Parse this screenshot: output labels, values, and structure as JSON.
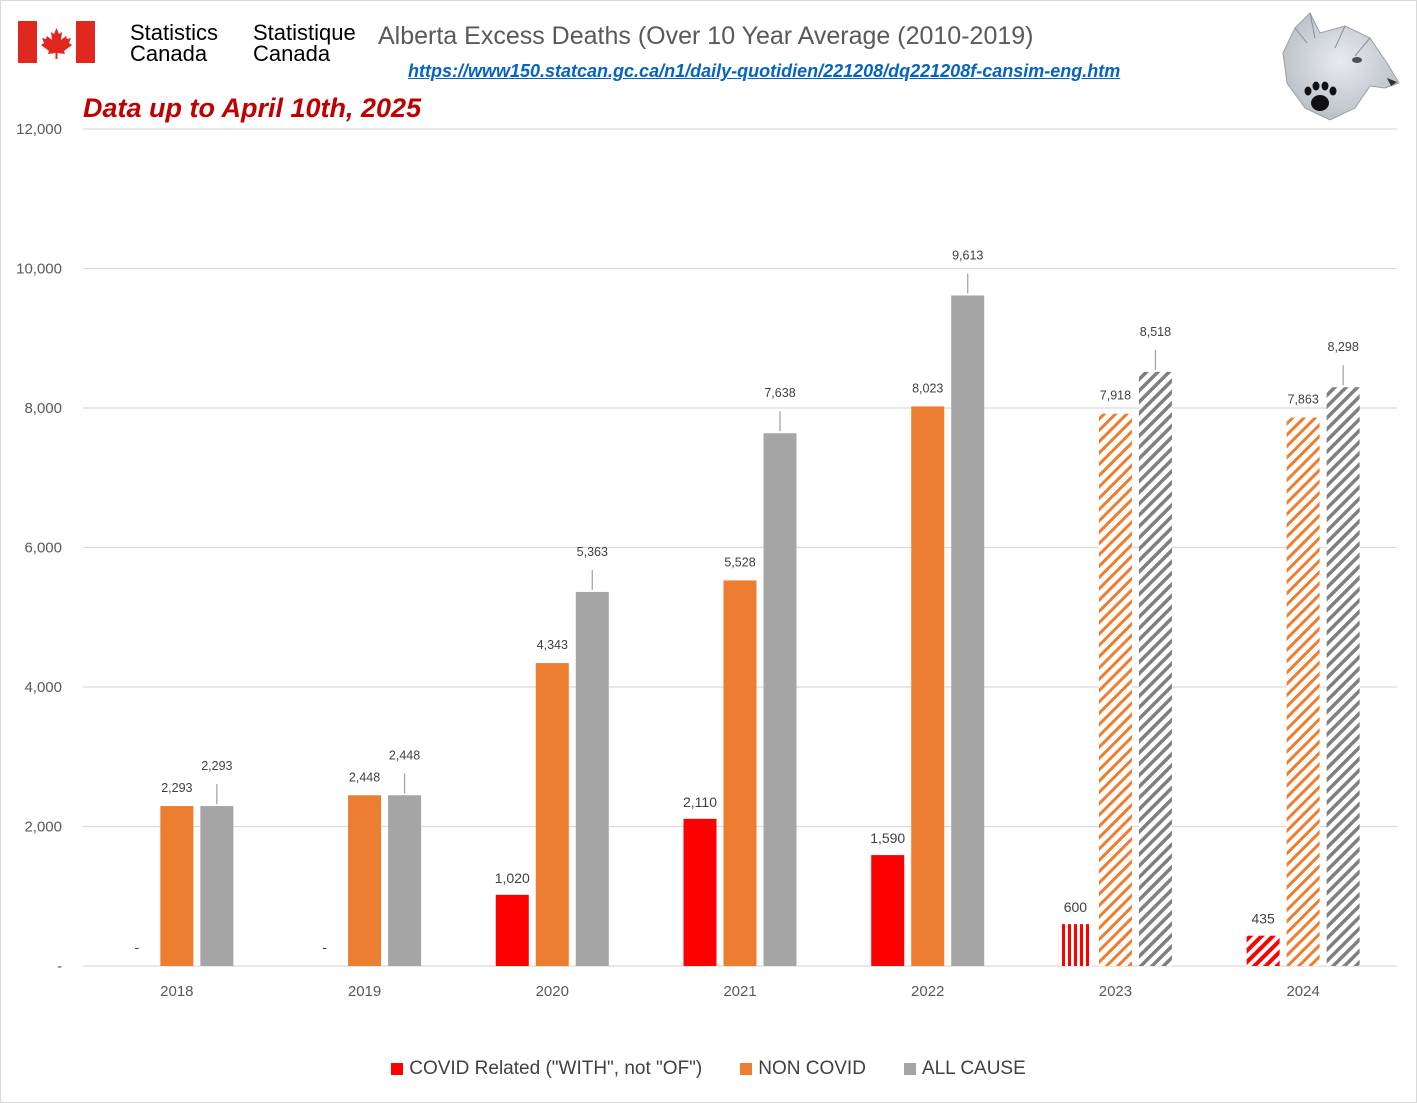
{
  "header": {
    "org_en_1": "Statistics",
    "org_en_2": "Canada",
    "org_fr_1": "Statistique",
    "org_fr_2": "Canada",
    "title": "Alberta Excess Deaths (Over 10 Year Average (2010-2019)",
    "url": "https://www150.statcan.gc.ca/n1/daily-quotidien/221208/dq221208f-cansim-eng.htm",
    "subtitle": "Data up to April 10th, 2025"
  },
  "colors": {
    "covid": "#ff0000",
    "non_covid": "#ed7d31",
    "all_cause": "#a5a5a5",
    "all_cause_hatch": "#7f7f7f",
    "flag_red": "#e0281f",
    "title_text": "#595959",
    "subtitle_text": "#c00000",
    "link": "#0563c1"
  },
  "chart_data": {
    "type": "bar",
    "categories": [
      "2018",
      "2019",
      "2020",
      "2021",
      "2022",
      "2023",
      "2024"
    ],
    "series": [
      {
        "name": "COVID Related (\"WITH\", not \"OF\")",
        "key": "covid",
        "values": [
          0,
          0,
          1020,
          2110,
          1590,
          600,
          435
        ],
        "labels": [
          "-",
          "-",
          "1,020",
          "2,110",
          "1,590",
          "600",
          "435"
        ]
      },
      {
        "name": "NON COVID",
        "key": "non_covid",
        "values": [
          2293,
          2448,
          4343,
          5528,
          8023,
          7918,
          7863
        ],
        "labels": [
          "2,293",
          "2,448",
          "4,343",
          "5,528",
          "8,023",
          "7,918",
          "7,863"
        ]
      },
      {
        "name": "ALL CAUSE",
        "key": "all_cause",
        "values": [
          2293,
          2448,
          5363,
          7638,
          9613,
          8518,
          8298
        ],
        "labels": [
          "2,293",
          "2,448",
          "5,363",
          "7,638",
          "9,613",
          "8,518",
          "8,298"
        ]
      }
    ],
    "hatched_categories": [
      "2023",
      "2024"
    ],
    "ylim": [
      0,
      12000
    ],
    "yticks": [
      0,
      2000,
      4000,
      6000,
      8000,
      10000,
      12000
    ],
    "ytick_labels": [
      "-",
      "2,000",
      "4,000",
      "6,000",
      "8,000",
      "10,000",
      "12,000"
    ],
    "grid": true,
    "legend_position": "bottom"
  },
  "legend": {
    "covid": "COVID Related (\"WITH\", not \"OF\")",
    "non_covid": "NON COVID",
    "all_cause": "ALL CAUSE"
  }
}
